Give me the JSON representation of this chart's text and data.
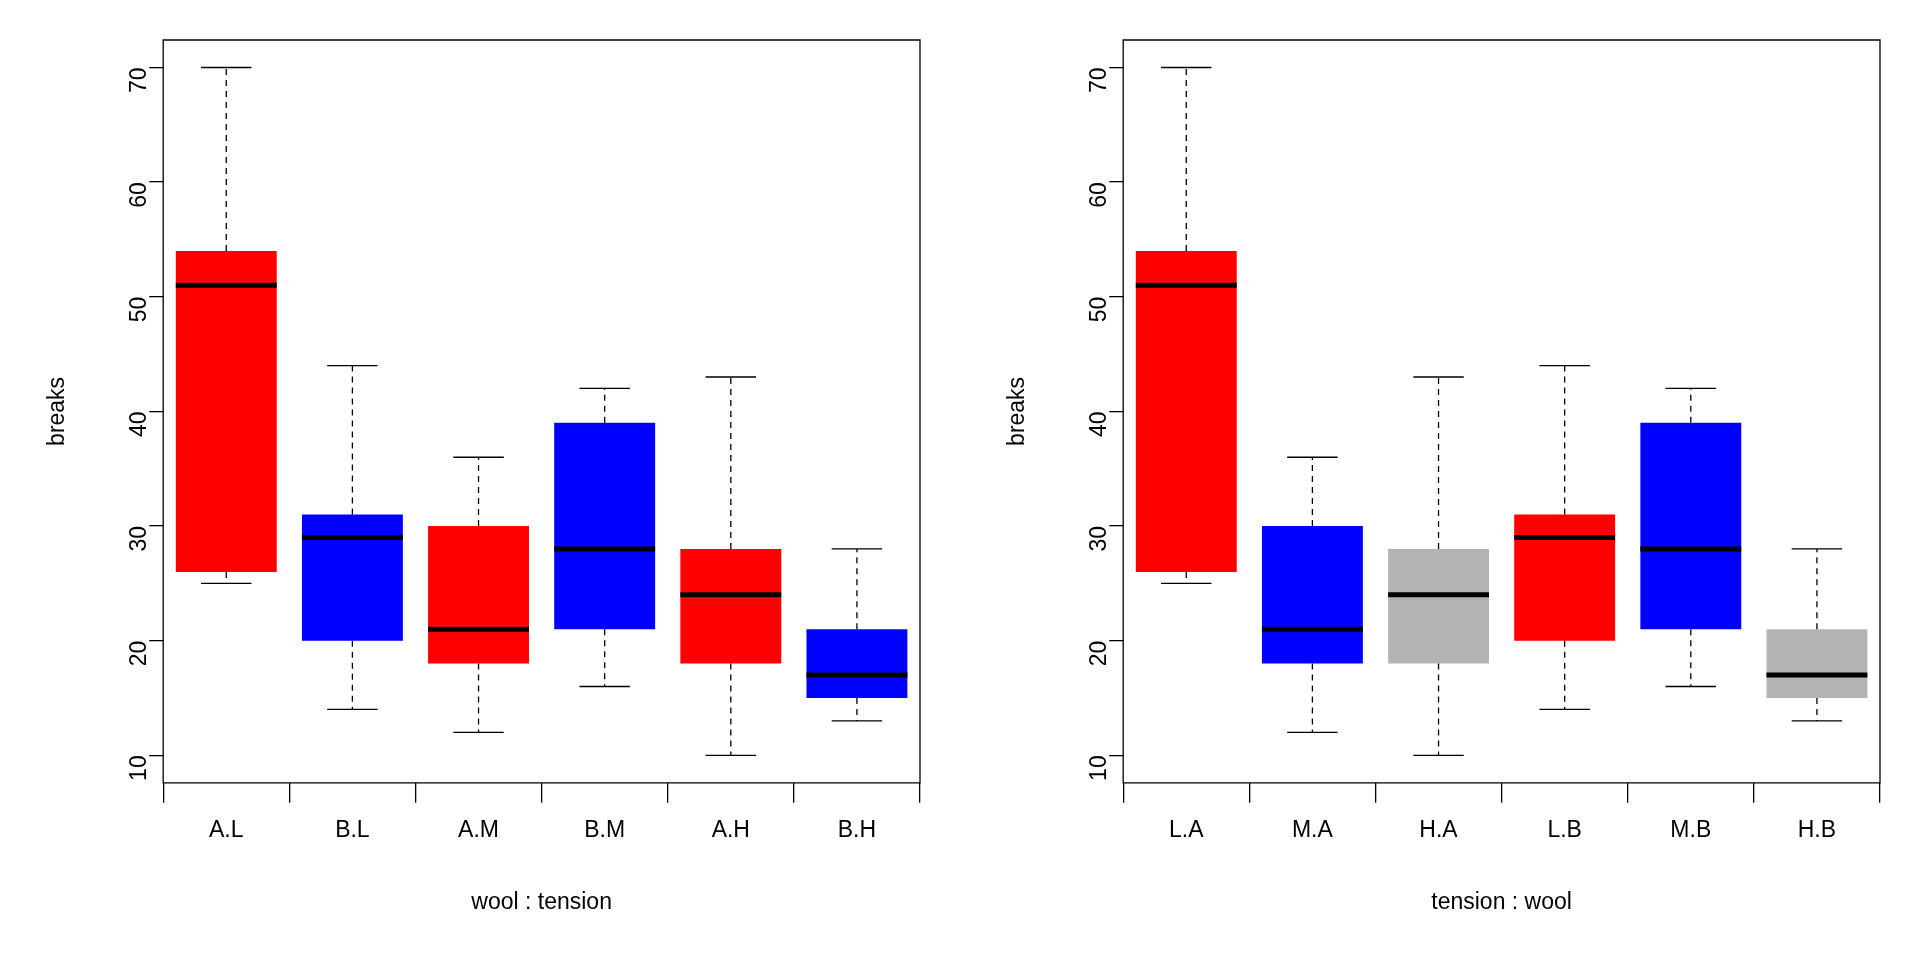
{
  "chart_data": [
    {
      "type": "box",
      "xlabel": "wool : tension",
      "ylabel": "breaks",
      "categories": [
        "A.L",
        "B.L",
        "A.M",
        "B.M",
        "A.H",
        "B.H"
      ],
      "colors": [
        "#ff0000",
        "#0000ff",
        "#ff0000",
        "#0000ff",
        "#ff0000",
        "#0000ff"
      ],
      "boxes": [
        {
          "low": 25,
          "q1": 26,
          "median": 51,
          "q3": 54,
          "high": 70
        },
        {
          "low": 14,
          "q1": 20,
          "median": 29,
          "q3": 31,
          "high": 44
        },
        {
          "low": 12,
          "q1": 18,
          "median": 21,
          "q3": 30,
          "high": 36
        },
        {
          "low": 16,
          "q1": 21,
          "median": 28,
          "q3": 39,
          "high": 42
        },
        {
          "low": 10,
          "q1": 18,
          "median": 24,
          "q3": 28,
          "high": 43
        },
        {
          "low": 13,
          "q1": 15,
          "median": 17,
          "q3": 21,
          "high": 28
        }
      ],
      "ylim": [
        7.6,
        72.4
      ],
      "yticks": [
        10,
        20,
        30,
        40,
        50,
        60,
        70
      ]
    },
    {
      "type": "box",
      "xlabel": "tension : wool",
      "ylabel": "breaks",
      "categories": [
        "L.A",
        "M.A",
        "H.A",
        "L.B",
        "M.B",
        "H.B"
      ],
      "colors": [
        "#ff0000",
        "#0000ff",
        "#b3b3b3",
        "#ff0000",
        "#0000ff",
        "#b3b3b3"
      ],
      "boxes": [
        {
          "low": 25,
          "q1": 26,
          "median": 51,
          "q3": 54,
          "high": 70
        },
        {
          "low": 12,
          "q1": 18,
          "median": 21,
          "q3": 30,
          "high": 36
        },
        {
          "low": 10,
          "q1": 18,
          "median": 24,
          "q3": 28,
          "high": 43
        },
        {
          "low": 14,
          "q1": 20,
          "median": 29,
          "q3": 31,
          "high": 44
        },
        {
          "low": 16,
          "q1": 21,
          "median": 28,
          "q3": 39,
          "high": 42
        },
        {
          "low": 13,
          "q1": 15,
          "median": 17,
          "q3": 21,
          "high": 28
        }
      ],
      "ylim": [
        7.6,
        72.4
      ],
      "yticks": [
        10,
        20,
        30,
        40,
        50,
        60,
        70
      ]
    }
  ]
}
